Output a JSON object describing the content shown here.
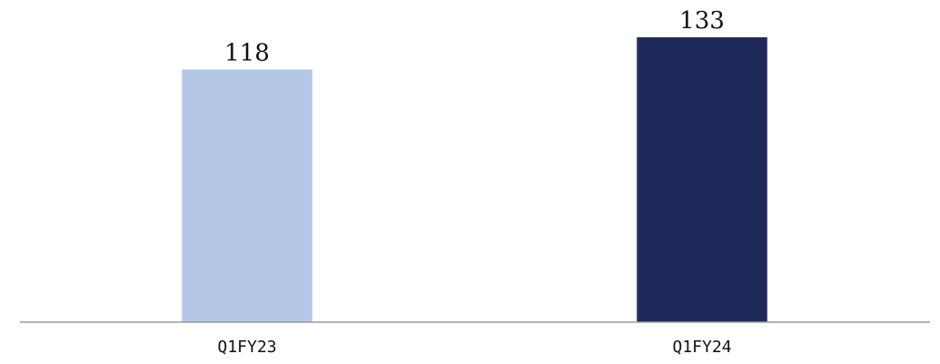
{
  "chart_data": {
    "type": "bar",
    "categories": [
      "Q1FY23",
      "Q1FY24"
    ],
    "values": [
      118,
      133
    ],
    "colors": [
      "#b4c7e7",
      "#1f2a5a"
    ],
    "axis_color": "#999999",
    "ylim": [
      0,
      133
    ],
    "grid": false,
    "legend": "none"
  }
}
